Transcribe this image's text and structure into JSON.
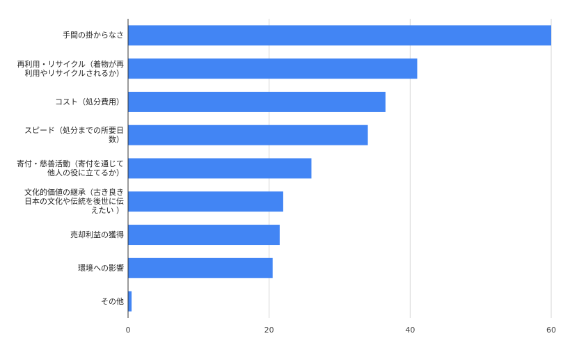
{
  "chart_data": {
    "type": "bar",
    "orientation": "horizontal",
    "categories": [
      "手間の掛からなさ",
      "再利用・リサイクル（着物が再\n利用やリサイクルされるか）",
      "コスト（処分費用）",
      "スピード（処分までの所要日\n数）",
      "寄付・慈善活動（寄付を通じて\n他人の役に立てるか）",
      "文化的価値の継承（古き良き\n日本の文化や伝統を後世に伝\nえたい ）",
      "売却利益の獲得",
      "環境への影響",
      "その他"
    ],
    "values": [
      60,
      41,
      36.5,
      34,
      26,
      22,
      21.5,
      20.5,
      0.5
    ],
    "xlim": [
      0,
      60
    ],
    "ticks": [
      "0",
      "20",
      "40",
      "60"
    ],
    "tick_values": [
      0,
      20,
      40,
      60
    ],
    "grid": true,
    "bar_color": "#4285f4",
    "title": "",
    "xlabel": "",
    "ylabel": ""
  }
}
